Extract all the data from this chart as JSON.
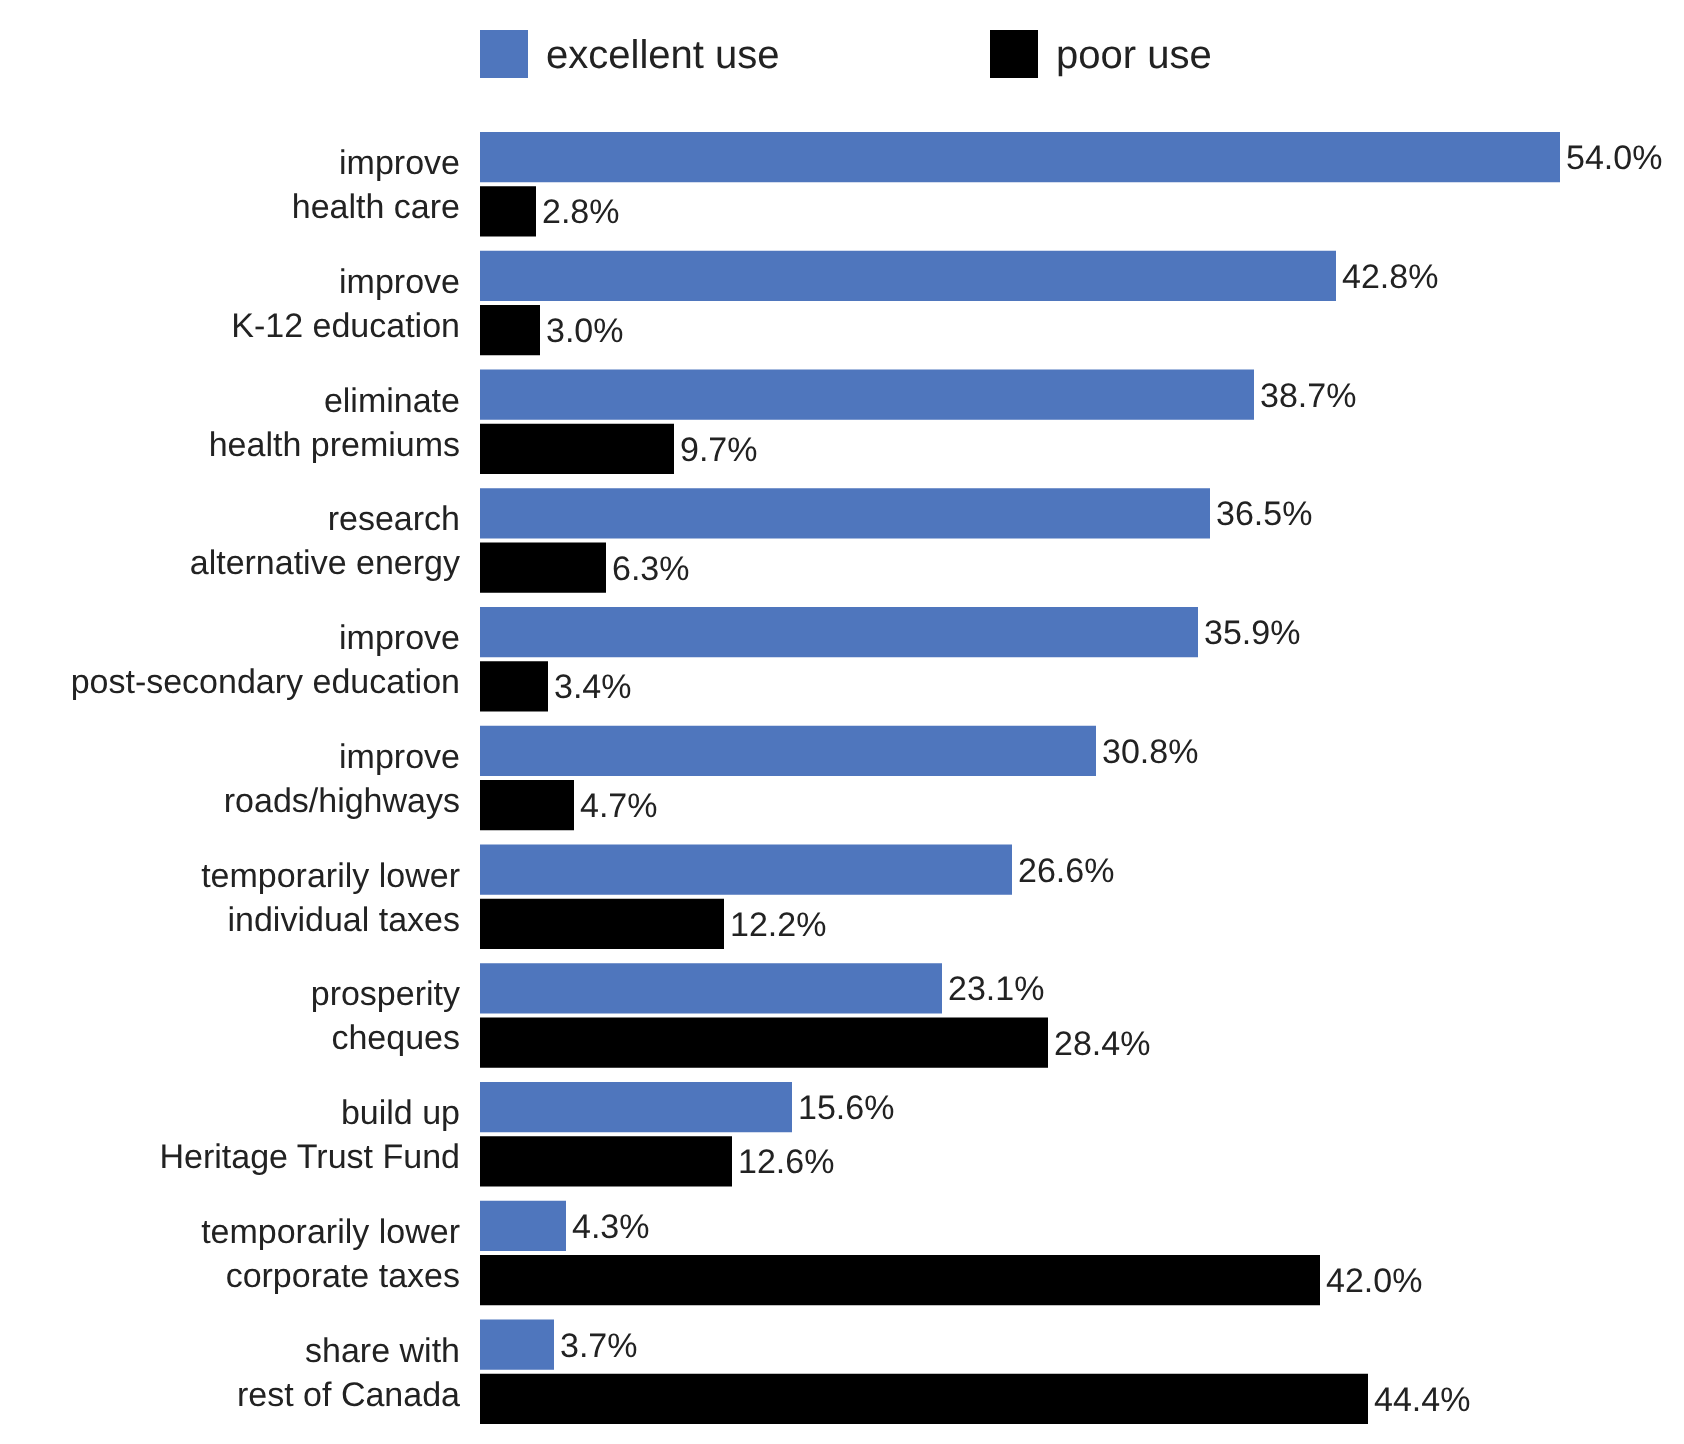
{
  "chart_data": {
    "type": "bar",
    "orientation": "horizontal",
    "legend": "top",
    "categories": [
      "improve\nhealth care",
      "improve\nK-12 education",
      "eliminate\nhealth premiums",
      "research\nalternative energy",
      "improve\npost-secondary education",
      "improve\nroads/highways",
      "temporarily lower\nindividual taxes",
      "prosperity\ncheques",
      "build up\nHeritage Trust Fund",
      "temporarily lower\ncorporate taxes",
      "share with\nrest of Canada"
    ],
    "series": [
      {
        "name": "excellent use",
        "color": "#4f76bd",
        "values": [
          54.0,
          42.8,
          38.7,
          36.5,
          35.9,
          30.8,
          26.6,
          23.1,
          15.6,
          4.3,
          3.7
        ],
        "value_labels": [
          "54.0%",
          "42.8%",
          "38.7%",
          "36.5%",
          "35.9%",
          "30.8%",
          "26.6%",
          "23.1%",
          "15.6%",
          "4.3%",
          "3.7%"
        ]
      },
      {
        "name": "poor use",
        "color": "#000000",
        "values": [
          2.8,
          3.0,
          9.7,
          6.3,
          3.4,
          4.7,
          12.2,
          28.4,
          12.6,
          42.0,
          44.4
        ],
        "value_labels": [
          "2.8%",
          "3.0%",
          "9.7%",
          "6.3%",
          "3.4%",
          "4.7%",
          "12.2%",
          "28.4%",
          "12.6%",
          "42.0%",
          "44.4%"
        ]
      }
    ]
  }
}
